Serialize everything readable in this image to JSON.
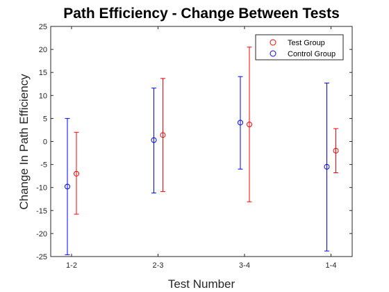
{
  "chart_data": {
    "type": "scatter",
    "title": "Path Efficiency - Change Between Tests",
    "xlabel": "Test Number",
    "ylabel": "Change In Path Efficiency",
    "categories": [
      "1-2",
      "2-3",
      "3-4",
      "1-4"
    ],
    "ylim": [
      -25,
      25
    ],
    "yticks": [
      -25,
      -20,
      -15,
      -10,
      -5,
      0,
      5,
      10,
      15,
      20,
      25
    ],
    "grid": false,
    "legend_position": "top-right",
    "series": [
      {
        "name": "Test Group",
        "color": "#ff0000",
        "marker": "circle",
        "values": [
          -7.0,
          1.4,
          3.7,
          -2.0
        ],
        "lower": [
          -15.8,
          -10.9,
          -13.1,
          -6.8
        ],
        "upper": [
          2.0,
          13.7,
          20.5,
          2.8
        ]
      },
      {
        "name": "Control Group",
        "color": "#0000ff",
        "marker": "circle",
        "values": [
          -9.8,
          0.3,
          4.1,
          -5.5
        ],
        "lower": [
          -24.6,
          -11.2,
          -6.0,
          -23.8
        ],
        "upper": [
          5.0,
          11.6,
          14.1,
          12.7
        ]
      }
    ]
  }
}
